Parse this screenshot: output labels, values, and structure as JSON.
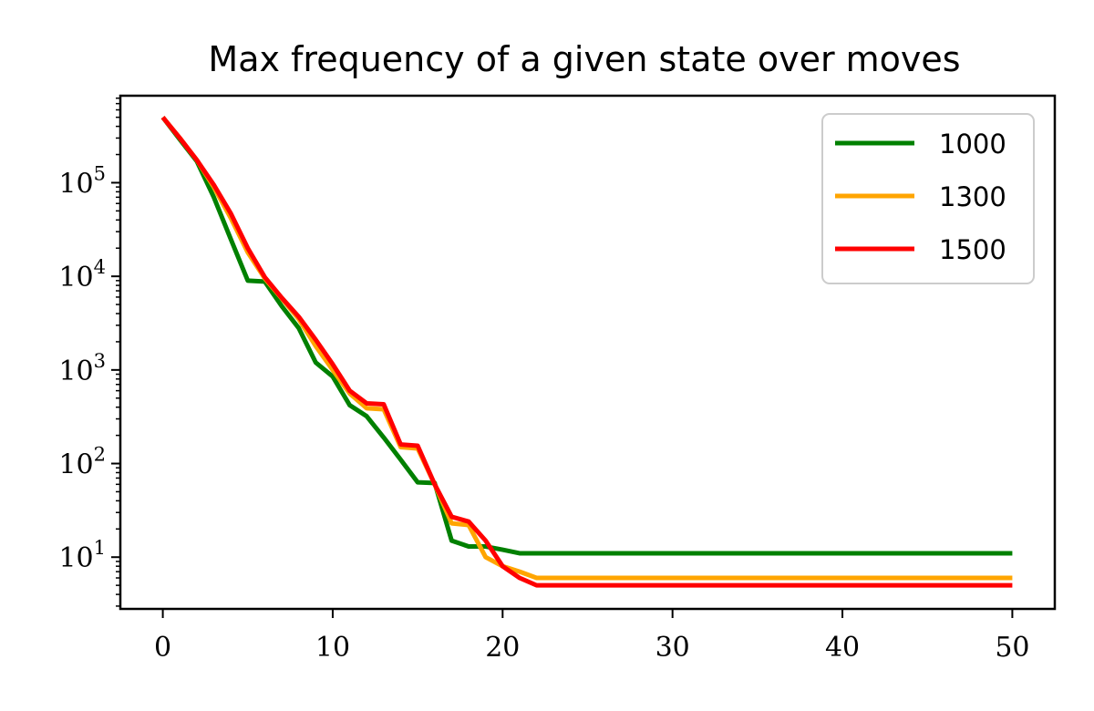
{
  "chart_data": {
    "type": "line",
    "title": "Max frequency of a given state over moves",
    "xlabel": "",
    "ylabel": "",
    "xlim": [
      -2.5,
      52.5
    ],
    "ylim": [
      2.8,
      850000
    ],
    "yscale": "log",
    "xticks": [
      0,
      10,
      20,
      30,
      40,
      50
    ],
    "xtick_labels": [
      "0",
      "10",
      "20",
      "30",
      "40",
      "50"
    ],
    "yticks": [
      {
        "base": "10",
        "exp": "1",
        "value": 10
      },
      {
        "base": "10",
        "exp": "2",
        "value": 100
      },
      {
        "base": "10",
        "exp": "3",
        "value": 1000
      },
      {
        "base": "10",
        "exp": "4",
        "value": 10000
      },
      {
        "base": "10",
        "exp": "5",
        "value": 100000
      }
    ],
    "grid": false,
    "legend_position": "top-right",
    "x": [
      0,
      1,
      2,
      3,
      4,
      5,
      6,
      7,
      8,
      9,
      10,
      11,
      12,
      13,
      14,
      15,
      16,
      17,
      18,
      19,
      20,
      21,
      22,
      23,
      24,
      25,
      26,
      27,
      28,
      29,
      30,
      31,
      32,
      33,
      34,
      35,
      36,
      37,
      38,
      39,
      40,
      41,
      42,
      43,
      44,
      45,
      46,
      47,
      48,
      49,
      50
    ],
    "series": [
      {
        "name": "1000",
        "color": "#008000",
        "values": [
          500000,
          290000,
          170000,
          70000,
          25000,
          9000,
          8800,
          4800,
          2800,
          1200,
          850,
          420,
          320,
          190,
          110,
          63,
          62,
          15,
          13,
          13,
          12,
          11,
          11,
          11,
          11,
          11,
          11,
          11,
          11,
          11,
          11,
          11,
          11,
          11,
          11,
          11,
          11,
          11,
          11,
          11,
          11,
          11,
          11,
          11,
          11,
          11,
          11,
          11,
          11,
          11,
          11
        ]
      },
      {
        "name": "1300",
        "color": "#ffa500",
        "values": [
          500000,
          300000,
          175000,
          90000,
          42000,
          18000,
          9500,
          5800,
          3500,
          1800,
          1000,
          560,
          390,
          380,
          150,
          145,
          60,
          23,
          22,
          10,
          8,
          7,
          6,
          6,
          6,
          6,
          6,
          6,
          6,
          6,
          6,
          6,
          6,
          6,
          6,
          6,
          6,
          6,
          6,
          6,
          6,
          6,
          6,
          6,
          6,
          6,
          6,
          6,
          6,
          6,
          6
        ]
      },
      {
        "name": "1500",
        "color": "#ff0000",
        "values": [
          500000,
          300000,
          175000,
          95000,
          47000,
          20000,
          9800,
          5900,
          3700,
          2100,
          1150,
          600,
          440,
          430,
          160,
          155,
          60,
          27,
          24,
          15,
          8,
          6,
          5,
          5,
          5,
          5,
          5,
          5,
          5,
          5,
          5,
          5,
          5,
          5,
          5,
          5,
          5,
          5,
          5,
          5,
          5,
          5,
          5,
          5,
          5,
          5,
          5,
          5,
          5,
          5,
          5
        ]
      }
    ]
  }
}
